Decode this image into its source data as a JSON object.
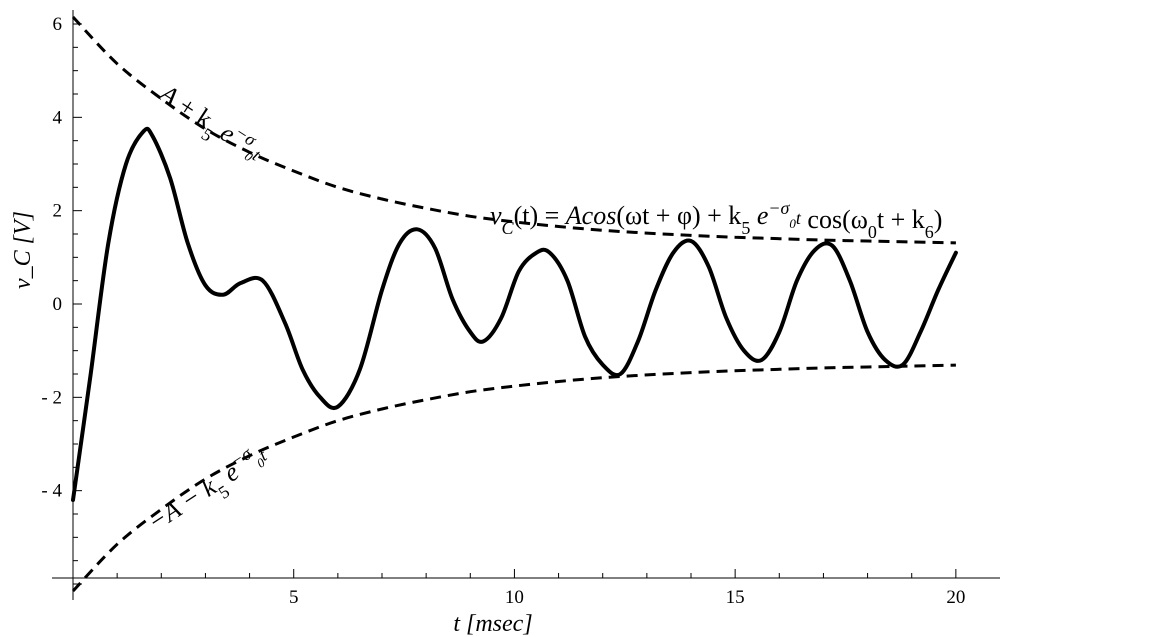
{
  "chart_data": {
    "type": "line",
    "xlabel": "t [msec]",
    "ylabel": "v_C [V]",
    "xlim": [
      0,
      21
    ],
    "ylim": [
      -6.3,
      6.3
    ],
    "x_ticks": [
      5,
      10,
      15,
      20
    ],
    "x_tick_labels": [
      "5",
      "10",
      "15",
      "20"
    ],
    "y_ticks": [
      6,
      4,
      2,
      0,
      -2,
      -4
    ],
    "y_tick_labels": [
      "6",
      "4",
      "2",
      "0",
      "- 2",
      "- 4"
    ],
    "grid": false,
    "series": [
      {
        "style": "solid",
        "x": [
          0,
          0.4,
          0.8,
          1.2,
          1.6,
          1.8,
          2.2,
          2.6,
          3.0,
          3.4,
          3.8,
          4.3,
          4.8,
          5.2,
          5.6,
          6.0,
          6.5,
          7.0,
          7.4,
          7.8,
          8.2,
          8.6,
          9.0,
          9.3,
          9.7,
          10.1,
          10.5,
          10.8,
          11.2,
          11.6,
          12.0,
          12.4,
          12.8,
          13.2,
          13.6,
          14.0,
          14.4,
          14.8,
          15.2,
          15.6,
          16.0,
          16.4,
          16.8,
          17.2,
          17.6,
          18.0,
          18.4,
          18.8,
          19.2,
          19.6,
          20.0
        ],
        "y": [
          -4.2,
          -1.5,
          1.3,
          3.0,
          3.7,
          3.6,
          2.7,
          1.3,
          0.4,
          0.2,
          0.45,
          0.5,
          -0.4,
          -1.4,
          -2.0,
          -2.2,
          -1.4,
          0.3,
          1.3,
          1.6,
          1.2,
          0.1,
          -0.6,
          -0.8,
          -0.3,
          0.7,
          1.1,
          1.1,
          0.5,
          -0.7,
          -1.3,
          -1.5,
          -0.8,
          0.3,
          1.1,
          1.35,
          0.8,
          -0.3,
          -1.0,
          -1.2,
          -0.6,
          0.5,
          1.15,
          1.25,
          0.5,
          -0.6,
          -1.2,
          -1.3,
          -0.6,
          0.3,
          1.1
        ]
      },
      {
        "style": "dashed",
        "x": [
          0,
          1,
          2,
          3,
          4,
          5,
          6,
          7,
          8,
          9,
          10,
          11,
          12,
          13,
          14,
          15,
          16,
          17,
          18,
          19,
          20
        ],
        "y": [
          6.15,
          5.15,
          4.4,
          3.75,
          3.25,
          2.85,
          2.5,
          2.25,
          2.05,
          1.88,
          1.76,
          1.66,
          1.58,
          1.52,
          1.47,
          1.43,
          1.4,
          1.37,
          1.35,
          1.33,
          1.31
        ]
      },
      {
        "style": "dashed",
        "x": [
          0,
          1,
          2,
          3,
          4,
          5,
          6,
          7,
          8,
          9,
          10,
          11,
          12,
          13,
          14,
          15,
          16,
          17,
          18,
          19,
          20
        ],
        "y": [
          -6.15,
          -5.15,
          -4.4,
          -3.75,
          -3.25,
          -2.85,
          -2.5,
          -2.25,
          -2.05,
          -1.88,
          -1.76,
          -1.66,
          -1.58,
          -1.52,
          -1.47,
          -1.43,
          -1.4,
          -1.37,
          -1.35,
          -1.33,
          -1.31
        ]
      }
    ],
    "annotations": {
      "upper_envelope": {
        "lead": "A",
        "op": " + k",
        "sub": "5",
        "e": " e",
        "exp": "−σ",
        "exp_sub": "0",
        "exp_tail": "t"
      },
      "lower_envelope": {
        "lead": "−A − k",
        "sub": "5",
        "e": " e",
        "exp": "−σ",
        "exp_sub": "0",
        "exp_tail": "t"
      },
      "formula": {
        "v": "v",
        "v_sub": "C",
        "t_arg": "(t) = ",
        "acos": "Acos",
        "acos_arg": "(ωt + φ) + k",
        "k_sub": "5",
        "e": " e",
        "exp": "−σ",
        "exp_sub": "0",
        "exp_tail": "t",
        "cos": " cos",
        "cos_arg": "(ω",
        "w_sub": "0",
        "cos_tail": "t + k",
        "k6_sub": "6",
        "close": ")"
      }
    }
  }
}
